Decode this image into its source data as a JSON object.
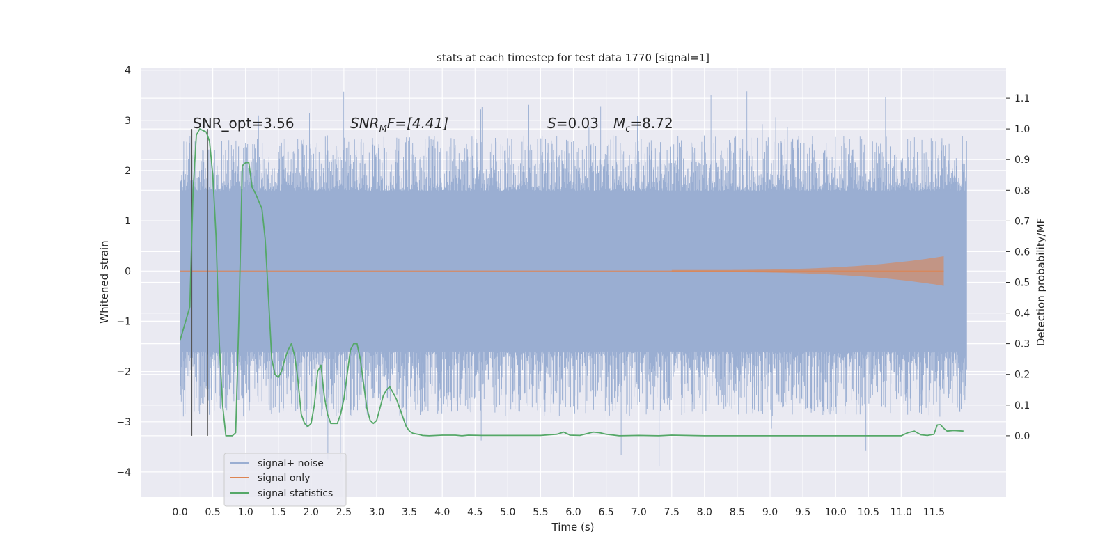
{
  "chart_data": {
    "type": "line",
    "title": "stats at each timestep for test data 1770 [signal=1]",
    "xlabel": "Time (s)",
    "ylabel_left": "Whitened strain",
    "ylabel_right": "Detection probability/MF",
    "xlim": [
      -0.6,
      12.6
    ],
    "ylim_left": [
      -4.5,
      4.05
    ],
    "ylim_right": [
      -0.2,
      1.2
    ],
    "x_ticks": [
      "0.0",
      "0.5",
      "1.0",
      "1.5",
      "2.0",
      "2.5",
      "3.0",
      "3.5",
      "4.0",
      "4.5",
      "5.0",
      "5.5",
      "6.0",
      "6.5",
      "7.0",
      "7.5",
      "8.0",
      "8.5",
      "9.0",
      "9.5",
      "10.0",
      "10.5",
      "11.0",
      "11.5"
    ],
    "y_ticks_left": [
      "−4",
      "−3",
      "−2",
      "−1",
      "0",
      "1",
      "2",
      "3",
      "4"
    ],
    "y_ticks_right": [
      "0.0",
      "0.1",
      "0.2",
      "0.3",
      "0.4",
      "0.5",
      "0.6",
      "0.7",
      "0.8",
      "0.9",
      "1.0",
      "1.1"
    ],
    "grid": true,
    "legend_position": "lower-left",
    "annotations": {
      "snr_opt": "SNR_opt=3.56",
      "snr_mf_base": "SNR",
      "snr_mf_sub": "M",
      "snr_mf_rest": "F=[4.41]",
      "s_base": "S",
      "s_rest": "=0.03",
      "mc_base": "M",
      "mc_sub": "c",
      "mc_rest": "=8.72"
    },
    "series": [
      {
        "name": "signal+ noise",
        "color": "#9aaed2",
        "t_range": [
          0.0,
          12.0
        ],
        "band_upper_typical": 1.6,
        "band_lower_typical": -1.6,
        "max_peak": 3.65,
        "min_peak": -4.1
      },
      {
        "name": "signal only",
        "color": "#dd8452",
        "t_range": [
          0.0,
          11.65
        ],
        "amplitude_at_end": 0.5
      },
      {
        "name": "signal statistics",
        "color": "#55a868",
        "x": [
          0.0,
          0.15,
          0.2,
          0.25,
          0.3,
          0.4,
          0.45,
          0.5,
          0.55,
          0.6,
          0.65,
          0.7,
          0.8,
          0.85,
          0.9,
          0.95,
          1.0,
          1.05,
          1.1,
          1.15,
          1.25,
          1.3,
          1.35,
          1.4,
          1.45,
          1.5,
          1.55,
          1.6,
          1.65,
          1.7,
          1.75,
          1.8,
          1.85,
          1.9,
          1.95,
          2.0,
          2.05,
          2.1,
          2.15,
          2.2,
          2.25,
          2.3,
          2.4,
          2.45,
          2.5,
          2.55,
          2.6,
          2.65,
          2.7,
          2.75,
          2.8,
          2.85,
          2.9,
          2.95,
          3.0,
          3.05,
          3.1,
          3.15,
          3.2,
          3.3,
          3.4,
          3.45,
          3.5,
          3.55,
          3.6,
          3.65,
          3.7,
          3.8,
          4.0,
          4.2,
          4.3,
          4.4,
          4.6,
          4.8,
          5.0,
          5.5,
          5.75,
          5.85,
          5.95,
          6.1,
          6.3,
          6.4,
          6.5,
          6.7,
          7.0,
          7.3,
          7.5,
          8.0,
          8.5,
          9.0,
          9.5,
          10.0,
          10.5,
          11.0,
          11.1,
          11.2,
          11.3,
          11.4,
          11.5,
          11.55,
          11.6,
          11.65,
          11.7,
          11.8,
          11.95
        ],
        "y": [
          0.31,
          0.42,
          0.8,
          0.98,
          1.0,
          0.99,
          0.96,
          0.85,
          0.65,
          0.3,
          0.1,
          0.0,
          0.0,
          0.01,
          0.4,
          0.88,
          0.89,
          0.89,
          0.81,
          0.79,
          0.74,
          0.64,
          0.45,
          0.25,
          0.2,
          0.19,
          0.21,
          0.25,
          0.28,
          0.3,
          0.26,
          0.18,
          0.07,
          0.04,
          0.03,
          0.04,
          0.1,
          0.21,
          0.23,
          0.13,
          0.07,
          0.04,
          0.04,
          0.07,
          0.12,
          0.2,
          0.28,
          0.3,
          0.3,
          0.25,
          0.17,
          0.09,
          0.05,
          0.04,
          0.05,
          0.09,
          0.13,
          0.15,
          0.16,
          0.12,
          0.06,
          0.03,
          0.015,
          0.008,
          0.006,
          0.004,
          0.001,
          0.0,
          0.002,
          0.002,
          0.0,
          0.002,
          0.001,
          0.001,
          0.001,
          0.001,
          0.005,
          0.012,
          0.002,
          0.001,
          0.012,
          0.01,
          0.005,
          0.0,
          0.001,
          0.0,
          0.002,
          0.0,
          0.0,
          0.0,
          0.0,
          0.0,
          0.0,
          0.0,
          0.01,
          0.015,
          0.003,
          0.001,
          0.005,
          0.035,
          0.036,
          0.024,
          0.015,
          0.017,
          0.015
        ]
      }
    ],
    "vertical_markers": [
      {
        "x": 0.18,
        "color": "#555555"
      },
      {
        "x": 0.42,
        "color": "#555555"
      }
    ],
    "legend": [
      "signal+ noise",
      "signal only",
      "signal statistics"
    ]
  }
}
